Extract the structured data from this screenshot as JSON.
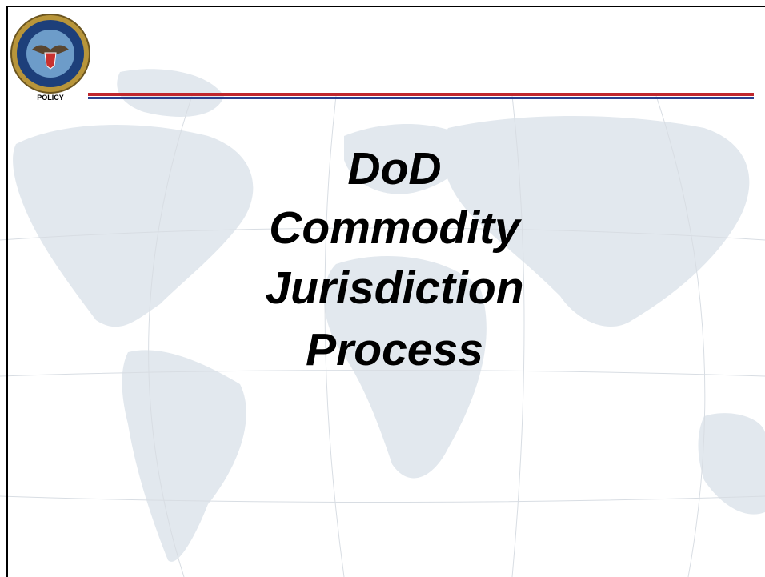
{
  "header": {
    "seal_label": "POLICY"
  },
  "title": {
    "lines": [
      "DoD",
      "Commodity",
      "Jurisdiction",
      "Process"
    ]
  }
}
